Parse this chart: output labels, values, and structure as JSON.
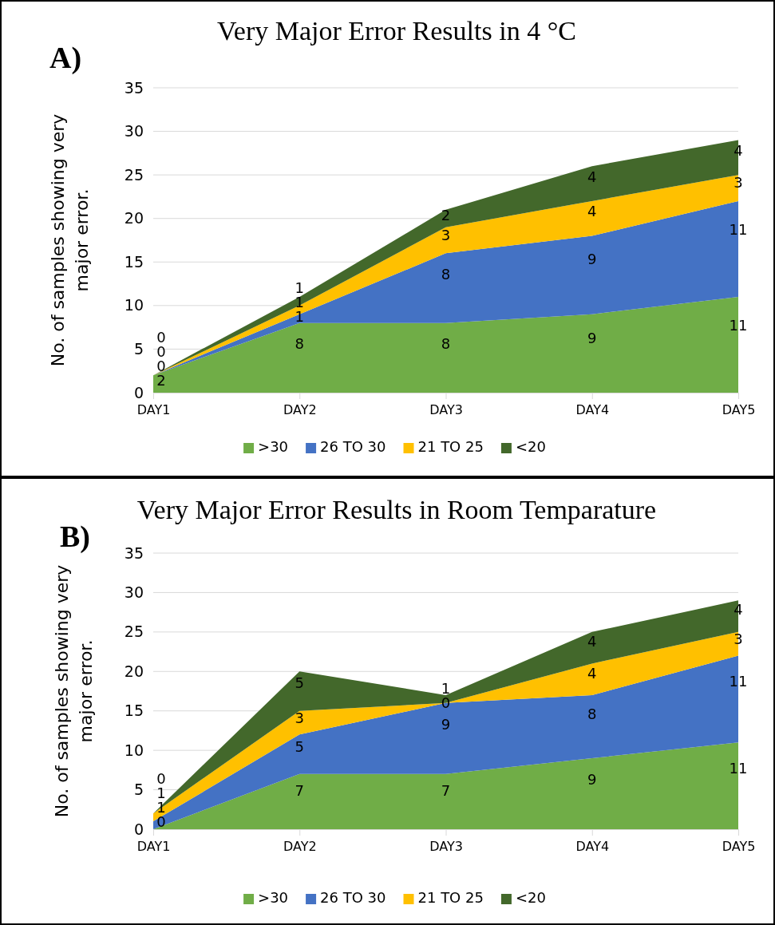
{
  "chart_data": [
    {
      "type": "area",
      "title": "Very Major Error Results in 4 °C",
      "ylabel": "No. of samples showing very major error.",
      "annotations": [
        "A)"
      ],
      "categories": [
        "DAY1",
        "DAY2",
        "DAY3",
        "DAY4",
        "DAY5"
      ],
      "stacked": true,
      "data_labels": true,
      "grid": "y",
      "legend": "bottom",
      "ylim": [
        0,
        35
      ],
      "yticks": [
        0,
        5,
        10,
        15,
        20,
        25,
        30,
        35
      ],
      "series": [
        {
          "name": ">30",
          "color": "#70ad47",
          "values": [
            2,
            8,
            8,
            9,
            11
          ]
        },
        {
          "name": "26 TO 30",
          "color": "#4472c4",
          "values": [
            0,
            1,
            8,
            9,
            11
          ]
        },
        {
          "name": "21 TO 25",
          "color": "#ffc000",
          "values": [
            0,
            1,
            3,
            4,
            3
          ]
        },
        {
          "name": "<20",
          "color": "#43682b",
          "values": [
            0,
            1,
            2,
            4,
            4
          ]
        }
      ]
    },
    {
      "type": "area",
      "title": "Very Major Error Results  in Room Temparature",
      "ylabel": "No. of samples showing very major error.",
      "annotations": [
        "B)"
      ],
      "categories": [
        "DAY1",
        "DAY2",
        "DAY3",
        "DAY4",
        "DAY5"
      ],
      "stacked": true,
      "data_labels": true,
      "grid": "y",
      "legend": "bottom",
      "ylim": [
        0,
        35
      ],
      "yticks": [
        0,
        5,
        10,
        15,
        20,
        25,
        30,
        35
      ],
      "series": [
        {
          "name": ">30",
          "color": "#70ad47",
          "values": [
            0,
            7,
            7,
            9,
            11
          ]
        },
        {
          "name": "26 TO 30",
          "color": "#4472c4",
          "values": [
            1,
            5,
            9,
            8,
            11
          ]
        },
        {
          "name": "21 TO 25",
          "color": "#ffc000",
          "values": [
            1,
            3,
            0,
            4,
            3
          ]
        },
        {
          "name": "<20",
          "color": "#43682b",
          "values": [
            0,
            5,
            1,
            4,
            4
          ]
        }
      ]
    }
  ]
}
